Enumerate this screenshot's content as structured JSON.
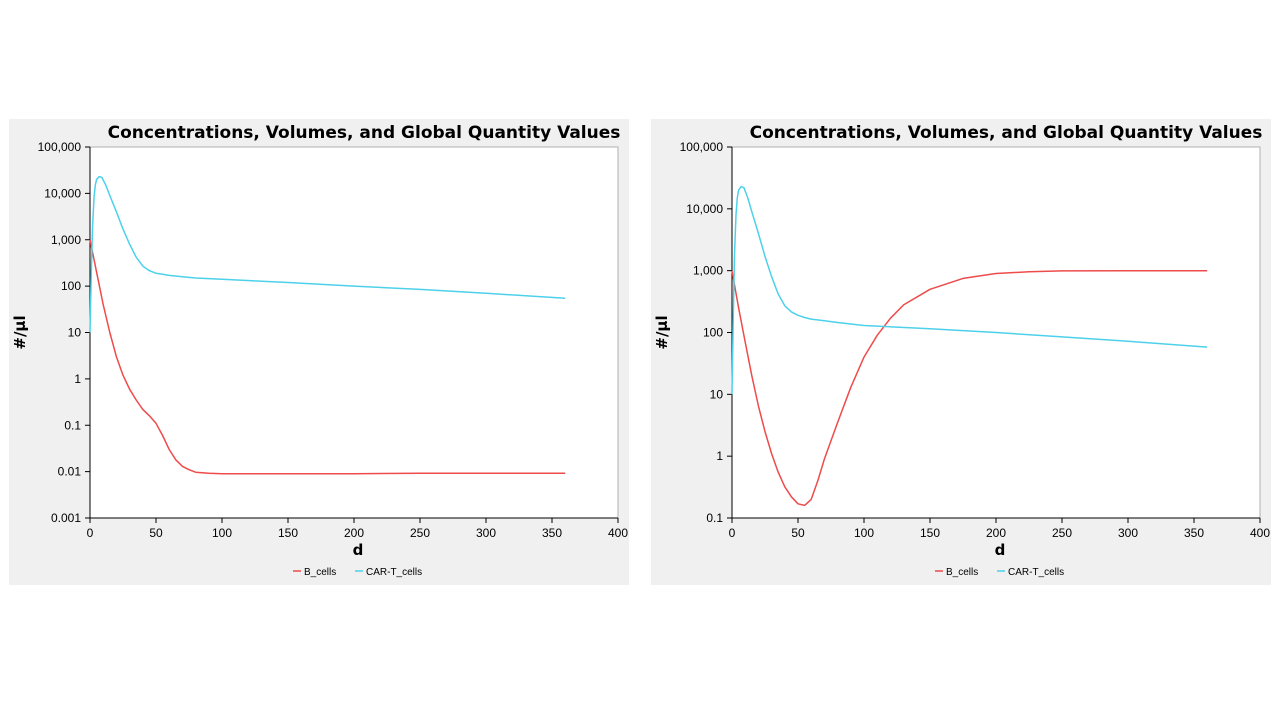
{
  "chart_data": [
    {
      "type": "line",
      "title": "Concentrations, Volumes, and Global Quantity Values",
      "xlabel": "d",
      "ylabel": "#/µl",
      "yscale": "log",
      "xlim": [
        0,
        400
      ],
      "ylim": [
        0.001,
        100000
      ],
      "xticks": [
        "0",
        "50",
        "100",
        "150",
        "200",
        "250",
        "300",
        "350",
        "400"
      ],
      "yticks": [
        "0.001",
        "0.01",
        "0.1",
        "1",
        "10",
        "100",
        "1,000",
        "10,000",
        "100,000"
      ],
      "legend_position": "bottom-center",
      "series": [
        {
          "name": "B_cells",
          "color": "#ee4b4b",
          "x": [
            0,
            5,
            10,
            15,
            20,
            25,
            30,
            35,
            40,
            45,
            50,
            55,
            60,
            65,
            70,
            75,
            80,
            90,
            100,
            150,
            200,
            250,
            300,
            360
          ],
          "y": [
            1000,
            200,
            40,
            10,
            3,
            1.2,
            0.6,
            0.35,
            0.22,
            0.16,
            0.11,
            0.06,
            0.03,
            0.018,
            0.013,
            0.011,
            0.0097,
            0.0092,
            0.009,
            0.009,
            0.009,
            0.0092,
            0.0092,
            0.0092
          ]
        },
        {
          "name": "CAR-T_cells",
          "color": "#4dd1ea",
          "x": [
            0,
            1,
            2,
            3,
            4,
            5,
            7,
            9,
            12,
            15,
            20,
            25,
            30,
            35,
            40,
            45,
            50,
            55,
            60,
            70,
            80,
            100,
            150,
            200,
            250,
            300,
            360
          ],
          "y": [
            10,
            200,
            2000,
            8000,
            15000,
            20000,
            23000,
            22000,
            15000,
            9000,
            4000,
            1700,
            800,
            420,
            270,
            215,
            190,
            180,
            170,
            160,
            150,
            140,
            120,
            100,
            85,
            70,
            55
          ]
        }
      ]
    },
    {
      "type": "line",
      "title": "Concentrations, Volumes, and Global Quantity Values",
      "xlabel": "d",
      "ylabel": "#/µl",
      "yscale": "log",
      "xlim": [
        0,
        400
      ],
      "ylim": [
        0.1,
        100000
      ],
      "xticks": [
        "0",
        "50",
        "100",
        "150",
        "200",
        "250",
        "300",
        "350",
        "400"
      ],
      "yticks": [
        "0.1",
        "1",
        "10",
        "100",
        "1,000",
        "10,000",
        "100,000"
      ],
      "legend_position": "bottom-center",
      "series": [
        {
          "name": "B_cells",
          "color": "#ee4b4b",
          "x": [
            0,
            5,
            10,
            15,
            20,
            25,
            30,
            35,
            40,
            45,
            50,
            55,
            60,
            65,
            70,
            80,
            90,
            100,
            110,
            120,
            130,
            150,
            175,
            200,
            225,
            250,
            300,
            360
          ],
          "y": [
            1000,
            250,
            70,
            20,
            6.5,
            2.5,
            1.1,
            0.55,
            0.32,
            0.22,
            0.17,
            0.16,
            0.2,
            0.4,
            0.9,
            3.5,
            13,
            40,
            90,
            170,
            280,
            500,
            750,
            900,
            960,
            990,
            1000,
            1000
          ]
        },
        {
          "name": "CAR-T_cells",
          "color": "#4dd1ea",
          "x": [
            0,
            1,
            2,
            3,
            4,
            5,
            7,
            9,
            12,
            15,
            20,
            25,
            30,
            35,
            40,
            45,
            50,
            55,
            60,
            70,
            80,
            100,
            150,
            200,
            250,
            300,
            360
          ],
          "y": [
            10,
            200,
            2000,
            8000,
            15000,
            20000,
            23000,
            22000,
            15000,
            9000,
            4000,
            1700,
            800,
            420,
            270,
            215,
            190,
            175,
            165,
            155,
            145,
            130,
            115,
            100,
            85,
            72,
            58
          ]
        }
      ]
    }
  ]
}
